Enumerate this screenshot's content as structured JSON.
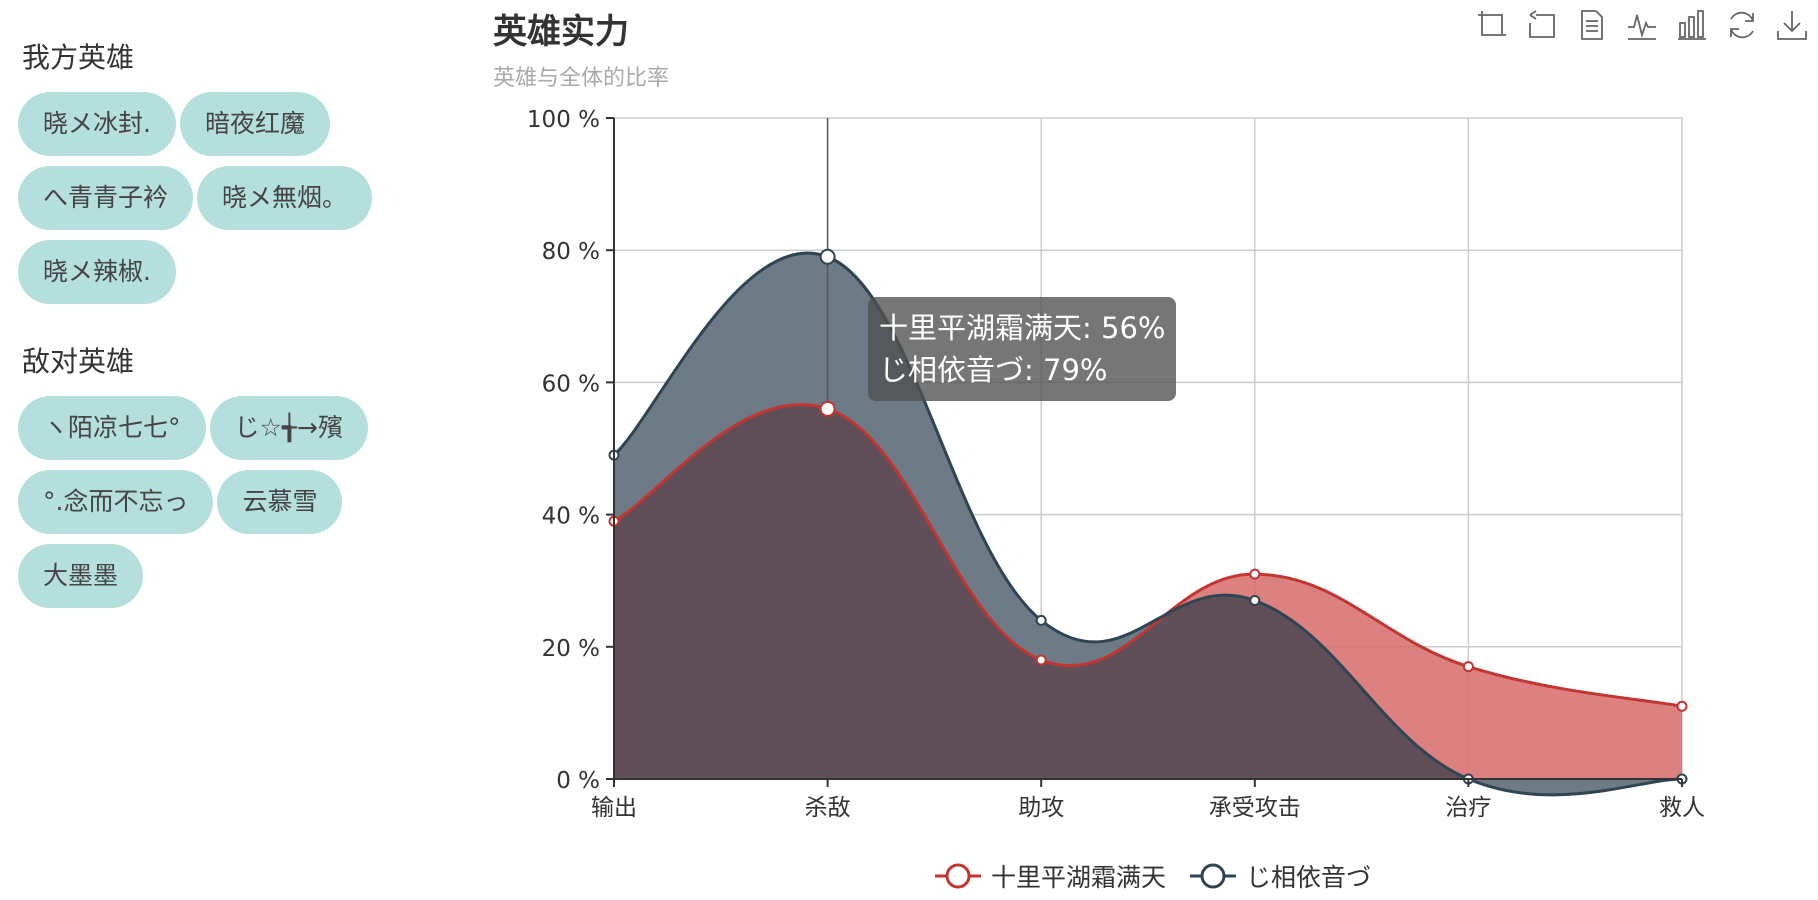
{
  "sidebar": {
    "our_title": "我方英雄",
    "our_heroes": [
      "晓メ冰封.",
      "暗夜红魔",
      "へ青青子衿",
      "晓メ無烟。",
      "晓メ辣椒."
    ],
    "enemy_title": "敌对英雄",
    "enemy_heroes": [
      "ヽ陌凉七七°",
      "じ☆╅→殯",
      "°.念而不忘っ",
      "云慕雪",
      "大墨墨"
    ]
  },
  "toolbox": {
    "icons": [
      "zoom-icon",
      "zoom-reset-icon",
      "data-view-icon",
      "line-chart-icon",
      "bar-chart-icon",
      "restore-icon",
      "save-image-icon"
    ]
  },
  "tooltip": {
    "line1": "十里平湖霜满天: 56%",
    "line2": "じ相依音づ: 79%"
  },
  "colors": {
    "series1": "#c23531",
    "series1_fill": "#d66a6a",
    "series2": "#2f4554",
    "series2_fill": "#6e7a86",
    "overlap_fill": "#604f58",
    "tag_bg": "#b4dfdc"
  },
  "chart_data": {
    "type": "area",
    "title": "英雄实力",
    "subtitle": "英雄与全体的比率",
    "categories": [
      "输出",
      "杀敌",
      "助攻",
      "承受攻击",
      "治疗",
      "救人"
    ],
    "series": [
      {
        "name": "十里平湖霜满天",
        "values": [
          39,
          56,
          18,
          31,
          17,
          11
        ]
      },
      {
        "name": "じ相依音づ",
        "values": [
          49,
          79,
          24,
          27,
          0,
          0
        ]
      }
    ],
    "ylim": [
      0,
      100
    ],
    "yticks": [
      0,
      20,
      40,
      60,
      80,
      100
    ],
    "ytick_suffix": " %",
    "grid": true,
    "smooth": true,
    "highlighted_category": "杀敌",
    "legend_position": "bottom-center"
  }
}
